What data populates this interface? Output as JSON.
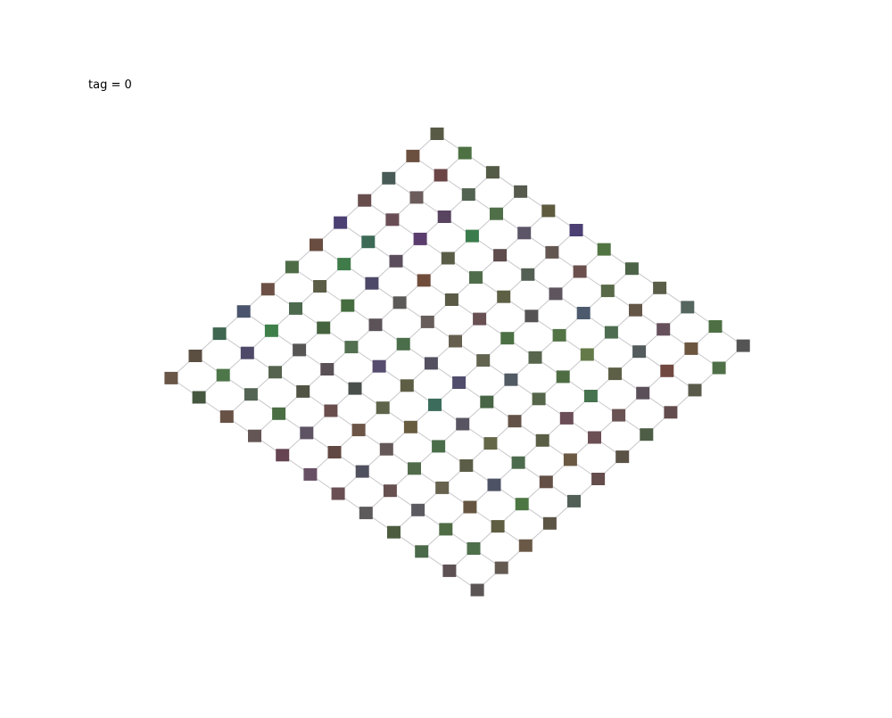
{
  "label": "tag = 0",
  "grid": {
    "rows": 12,
    "cols": 12,
    "node_colors": [
      [
        "#595a45",
        "#4d7142",
        "#535a45",
        "#575b4e",
        "#5e5b3f",
        "#4b3f73",
        "#507543",
        "#4d6348",
        "#5a5e48",
        "#55665f",
        "#4d6f43",
        "#545455"
      ],
      [
        "#6c503f",
        "#6c4647",
        "#526451",
        "#4f6f49",
        "#5c5467",
        "#645751",
        "#6b504d",
        "#586a47",
        "#645647",
        "#66505b",
        "#6d5640",
        "#4f6f48"
      ],
      [
        "#485b56",
        "#6c5d5c",
        "#584361",
        "#3b7c4c",
        "#5e4d4c",
        "#556054",
        "#5e555f",
        "#4d5a6e",
        "#4e6d50",
        "#535b5c",
        "#704840",
        "#5a5a4b"
      ],
      [
        "#684d4d",
        "#6a4e55",
        "#5a3d6d",
        "#5b5e47",
        "#4f6d4a",
        "#5e6045",
        "#555353",
        "#537445",
        "#647b49",
        "#5d6046",
        "#5b4f59",
        "#634c4d"
      ],
      [
        "#4c3f73",
        "#3d6a56",
        "#5b4d5b",
        "#704c3a",
        "#5b5a47",
        "#685053",
        "#4c7043",
        "#56654c",
        "#4e6d43",
        "#46734e",
        "#6a5353",
        "#4d5d46"
      ],
      [
        "#684d40",
        "#3f7c4a",
        "#4d4868",
        "#5c5a58",
        "#675e5c",
        "#665f4f",
        "#626450",
        "#525a64",
        "#56664a",
        "#6a4d56",
        "#6c4f54",
        "#5b5246"
      ],
      [
        "#4e6d47",
        "#5c5d46",
        "#466d3f",
        "#5c5359",
        "#4a6d4a",
        "#545060",
        "#504d6c",
        "#486545",
        "#635247",
        "#5a5e45",
        "#6b5944",
        "#644d4b"
      ],
      [
        "#6c5046",
        "#4d6a4e",
        "#45633e",
        "#527050",
        "#564c6e",
        "#5d5e44",
        "#3c6d5c",
        "#595462",
        "#646848",
        "#4c6b4d",
        "#645047",
        "#515f57"
      ],
      [
        "#4a546c",
        "#3f804a",
        "#585555",
        "#5a5157",
        "#49504c",
        "#5e6449",
        "#695d40",
        "#4a6d4a",
        "#5c5d47",
        "#4d5264",
        "#4c7743",
        "#5c5546"
      ],
      [
        "#3f6650",
        "#4e4969",
        "#56634e",
        "#515445",
        "#6a4e4d",
        "#6c5546",
        "#645858",
        "#526c4b",
        "#66624e",
        "#665541",
        "#5f5e43",
        "#6a5947"
      ],
      [
        "#5b4f42",
        "#4d7649",
        "#536455",
        "#4b6e44",
        "#5e5363",
        "#624842",
        "#50515f",
        "#665050",
        "#5c5a61",
        "#506c45",
        "#4e704b",
        "#655a52"
      ],
      [
        "#6a5647",
        "#46573f",
        "#685245",
        "#645654",
        "#664451",
        "#685064",
        "#6a4f54",
        "#5c5a5b",
        "#4d5c3f",
        "#4b6a4a",
        "#5e5153",
        "#5c5555"
      ]
    ]
  }
}
